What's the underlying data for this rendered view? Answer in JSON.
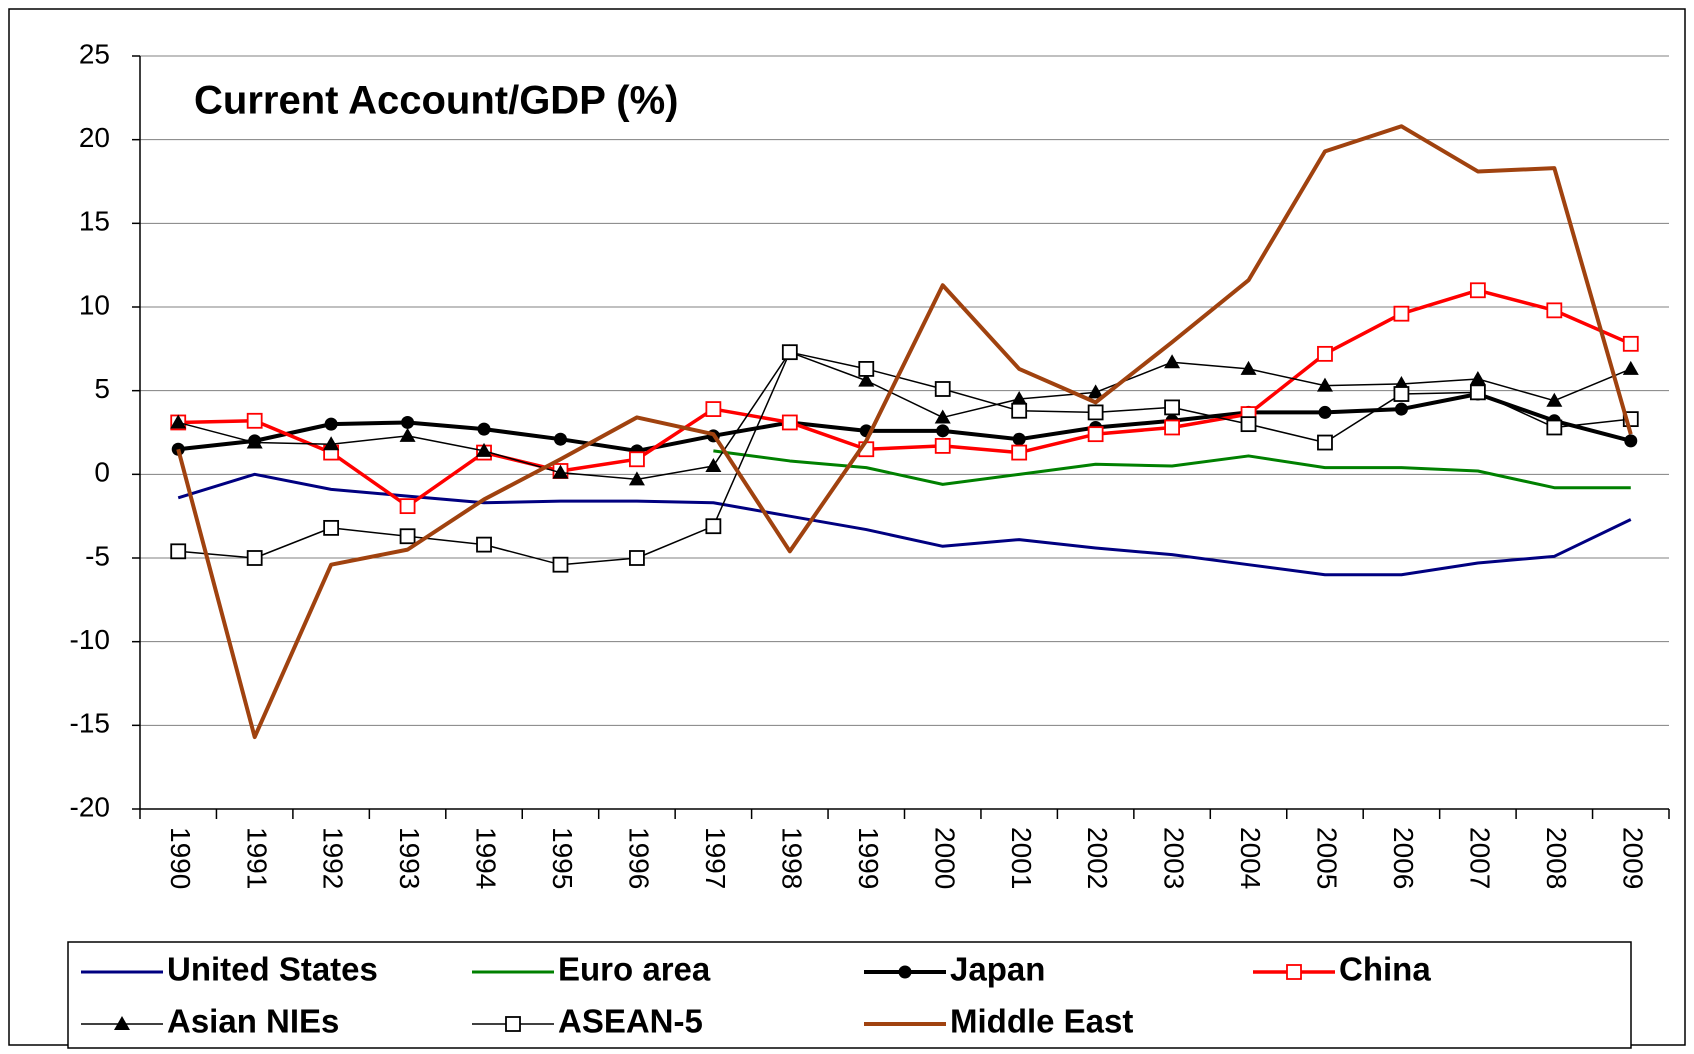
{
  "chart_data": {
    "type": "line",
    "title": "Current Account/GDP (%)",
    "categories": [
      "1990",
      "1991",
      "1992",
      "1993",
      "1994",
      "1995",
      "1996",
      "1997",
      "1998",
      "1999",
      "2000",
      "2001",
      "2002",
      "2003",
      "2004",
      "2005",
      "2006",
      "2007",
      "2008",
      "2009"
    ],
    "ylim": [
      -20,
      25
    ],
    "yticks": [
      -20,
      -15,
      -10,
      -5,
      0,
      5,
      10,
      15,
      20,
      25
    ],
    "grid": true,
    "series": [
      {
        "name": "United States",
        "color": "#000080",
        "width": 3,
        "marker": "none",
        "values": [
          -1.4,
          0,
          -0.9,
          -1.3,
          -1.7,
          -1.6,
          -1.6,
          -1.7,
          -2.5,
          -3.3,
          -4.3,
          -3.9,
          -4.4,
          -4.8,
          -5.4,
          -6.0,
          -6.0,
          -5.3,
          -4.9,
          -2.7
        ]
      },
      {
        "name": "Euro area",
        "color": "#008000",
        "width": 3,
        "marker": "none",
        "values": [
          null,
          null,
          null,
          null,
          null,
          null,
          null,
          1.4,
          0.8,
          0.4,
          -0.6,
          0.0,
          0.6,
          0.5,
          1.1,
          0.4,
          0.4,
          0.2,
          -0.8,
          -0.8
        ]
      },
      {
        "name": "Japan",
        "color": "#000000",
        "width": 4,
        "marker": "circle",
        "values": [
          1.5,
          2.0,
          3.0,
          3.1,
          2.7,
          2.1,
          1.4,
          2.3,
          3.1,
          2.6,
          2.6,
          2.1,
          2.8,
          3.2,
          3.7,
          3.7,
          3.9,
          4.8,
          3.2,
          2.0
        ]
      },
      {
        "name": "China",
        "color": "#ff0000",
        "width": 3.5,
        "marker": "square-open",
        "values": [
          3.1,
          3.2,
          1.3,
          -1.9,
          1.3,
          0.2,
          0.9,
          3.9,
          3.1,
          1.5,
          1.7,
          1.3,
          2.4,
          2.8,
          3.6,
          7.2,
          9.6,
          11.0,
          9.8,
          7.8
        ]
      },
      {
        "name": "Asian NIEs",
        "color": "#000000",
        "width": 1.5,
        "marker": "triangle",
        "values": [
          3.1,
          1.9,
          1.8,
          2.3,
          1.4,
          0.1,
          -0.3,
          0.5,
          7.3,
          5.6,
          3.4,
          4.5,
          4.9,
          6.7,
          6.3,
          5.3,
          5.4,
          5.7,
          4.4,
          6.3
        ]
      },
      {
        "name": "ASEAN-5",
        "color": "#000000",
        "width": 1.5,
        "marker": "square-open",
        "values": [
          -4.6,
          -5.0,
          -3.2,
          -3.7,
          -4.2,
          -5.4,
          -5.0,
          -3.1,
          7.3,
          6.3,
          5.1,
          3.8,
          3.7,
          4.0,
          3.0,
          1.9,
          4.8,
          4.9,
          2.8,
          3.3
        ]
      },
      {
        "name": "Middle East",
        "color": "#a0420f",
        "width": 4,
        "marker": "none",
        "values": [
          1.5,
          -15.7,
          -5.4,
          -4.5,
          -1.5,
          0.9,
          3.4,
          2.4,
          -4.6,
          2.0,
          11.3,
          6.3,
          4.3,
          7.9,
          11.6,
          19.3,
          20.8,
          18.1,
          18.3,
          2.4
        ]
      }
    ]
  }
}
